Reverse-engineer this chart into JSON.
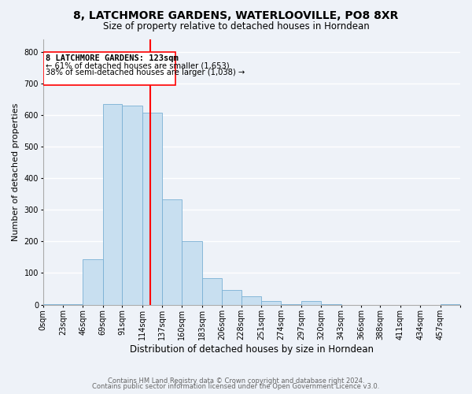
{
  "title": "8, LATCHMORE GARDENS, WATERLOOVILLE, PO8 8XR",
  "subtitle": "Size of property relative to detached houses in Horndean",
  "xlabel": "Distribution of detached houses by size in Horndean",
  "ylabel": "Number of detached properties",
  "bar_color": "#c8dff0",
  "bar_edge_color": "#7ab0d4",
  "bins": [
    "0sqm",
    "23sqm",
    "46sqm",
    "69sqm",
    "91sqm",
    "114sqm",
    "137sqm",
    "160sqm",
    "183sqm",
    "206sqm",
    "228sqm",
    "251sqm",
    "274sqm",
    "297sqm",
    "320sqm",
    "343sqm",
    "366sqm",
    "388sqm",
    "411sqm",
    "434sqm",
    "457sqm"
  ],
  "bin_edges": [
    0,
    23,
    46,
    69,
    91,
    114,
    137,
    160,
    183,
    206,
    228,
    251,
    274,
    297,
    320,
    343,
    366,
    388,
    411,
    434,
    457
  ],
  "bar_heights": [
    2,
    2,
    143,
    635,
    630,
    608,
    333,
    200,
    84,
    46,
    27,
    12,
    2,
    12,
    2,
    0,
    0,
    0,
    0,
    0,
    2
  ],
  "red_line_x": 123,
  "ylim": [
    0,
    840
  ],
  "yticks": [
    0,
    100,
    200,
    300,
    400,
    500,
    600,
    700,
    800
  ],
  "annotation_title": "8 LATCHMORE GARDENS: 123sqm",
  "annotation_line1": "← 61% of detached houses are smaller (1,653)",
  "annotation_line2": "38% of semi-detached houses are larger (1,038) →",
  "footer1": "Contains HM Land Registry data © Crown copyright and database right 2024.",
  "footer2": "Contains public sector information licensed under the Open Government Licence v3.0.",
  "background_color": "#eef2f8",
  "plot_bg_color": "#eef2f8",
  "grid_color": "white",
  "title_fontsize": 10,
  "subtitle_fontsize": 8.5,
  "xlabel_fontsize": 8.5,
  "ylabel_fontsize": 8,
  "tick_fontsize": 7,
  "footer_fontsize": 6
}
